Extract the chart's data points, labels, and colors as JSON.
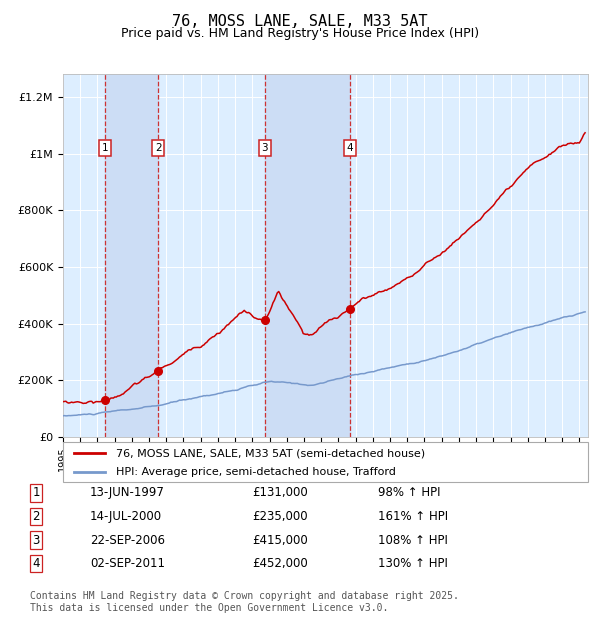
{
  "title": "76, MOSS LANE, SALE, M33 5AT",
  "subtitle": "Price paid vs. HM Land Registry's House Price Index (HPI)",
  "title_fontsize": 11,
  "subtitle_fontsize": 9,
  "xlim_start": 1995.0,
  "xlim_end": 2025.5,
  "ylim_min": 0,
  "ylim_max": 1280000,
  "yticks": [
    0,
    200000,
    400000,
    600000,
    800000,
    1000000,
    1200000
  ],
  "ytick_labels": [
    "£0",
    "£200K",
    "£400K",
    "£600K",
    "£800K",
    "£1M",
    "£1.2M"
  ],
  "background_color": "#ffffff",
  "plot_bg_color": "#ddeeff",
  "grid_color": "#ffffff",
  "red_line_color": "#cc0000",
  "blue_line_color": "#7799cc",
  "sale_marker_color": "#cc0000",
  "vspan_color": "#ccddf5",
  "dashed_line_color": "#cc3333",
  "label_box_color": "#ffffff",
  "label_box_edge": "#cc2222",
  "transactions": [
    {
      "num": 1,
      "date": "13-JUN-1997",
      "price": 131000,
      "pct": "98%",
      "year_x": 1997.45
    },
    {
      "num": 2,
      "date": "14-JUL-2000",
      "price": 235000,
      "pct": "161%",
      "year_x": 2000.54
    },
    {
      "num": 3,
      "date": "22-SEP-2006",
      "price": 415000,
      "pct": "108%",
      "year_x": 2006.72
    },
    {
      "num": 4,
      "date": "02-SEP-2011",
      "price": 452000,
      "pct": "130%",
      "year_x": 2011.67
    }
  ],
  "legend_label_red": "76, MOSS LANE, SALE, M33 5AT (semi-detached house)",
  "legend_label_blue": "HPI: Average price, semi-detached house, Trafford",
  "footer": "Contains HM Land Registry data © Crown copyright and database right 2025.\nThis data is licensed under the Open Government Licence v3.0.",
  "footer_fontsize": 7
}
